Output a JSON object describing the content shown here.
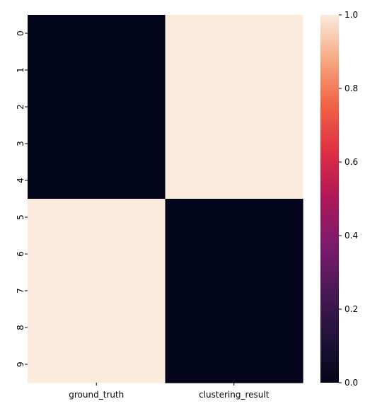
{
  "chart_data": {
    "type": "heatmap",
    "title": "",
    "xlabel": "",
    "ylabel": "",
    "columns": [
      "ground_truth",
      "clustering_result"
    ],
    "rows": [
      "0",
      "1",
      "2",
      "3",
      "4",
      "5",
      "6",
      "7",
      "8",
      "9"
    ],
    "values": [
      [
        0,
        1
      ],
      [
        0,
        1
      ],
      [
        0,
        1
      ],
      [
        0,
        1
      ],
      [
        0,
        1
      ],
      [
        1,
        0
      ],
      [
        1,
        0
      ],
      [
        1,
        0
      ],
      [
        1,
        0
      ],
      [
        1,
        0
      ]
    ],
    "colorbar": {
      "range": [
        0.0,
        1.0
      ],
      "ticks": [
        "0.0",
        "0.2",
        "0.4",
        "0.6",
        "0.8",
        "1.0"
      ],
      "colormap": "rocket",
      "low_color": "#03051a",
      "high_color": "#faebdd"
    },
    "grid": false,
    "legend": "colorbar-right"
  }
}
